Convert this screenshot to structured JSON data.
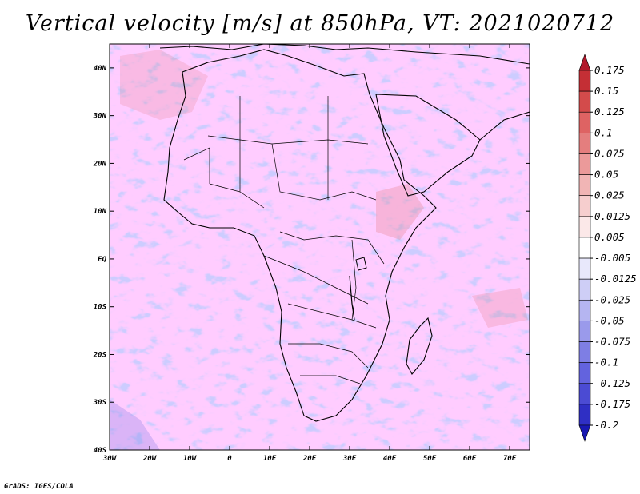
{
  "title": "Vertical velocity [m/s] at 850hPa, VT: 2021020712",
  "credit": "GrADS: IGES/COLA",
  "map": {
    "region": "Africa and Middle East",
    "field": "850hPa vertical velocity",
    "lon_range": [
      -30,
      75
    ],
    "lat_range": [
      -40,
      45
    ]
  },
  "axes": {
    "x_ticks": [
      "30W",
      "20W",
      "10W",
      "0",
      "10E",
      "20E",
      "30E",
      "40E",
      "50E",
      "60E",
      "70E"
    ],
    "x_values": [
      -30,
      -20,
      -10,
      0,
      10,
      20,
      30,
      40,
      50,
      60,
      70
    ],
    "y_ticks": [
      "40N",
      "30N",
      "20N",
      "10N",
      "EQ",
      "10S",
      "20S",
      "30S",
      "40S"
    ],
    "y_values": [
      40,
      30,
      20,
      10,
      0,
      -10,
      -20,
      -30,
      -40
    ]
  },
  "colorbar": {
    "labels": [
      "0.175",
      "0.15",
      "0.125",
      "0.1",
      "0.075",
      "0.05",
      "0.025",
      "0.0125",
      "0.005",
      "-0.005",
      "-0.0125",
      "-0.025",
      "-0.05",
      "-0.075",
      "-0.1",
      "-0.125",
      "-0.175",
      "-0.2"
    ],
    "colors": [
      "#b2182b",
      "#c42f35",
      "#d34b4b",
      "#de6363",
      "#e47e7e",
      "#eb9a9a",
      "#f1b5b5",
      "#f6cece",
      "#fbe8e8",
      "#ffffff",
      "#e8e8fb",
      "#cecef6",
      "#b5b5f1",
      "#9a9aeb",
      "#7e7ee4",
      "#6363de",
      "#4b4bd3",
      "#2f2fc4",
      "#1818b2"
    ]
  }
}
